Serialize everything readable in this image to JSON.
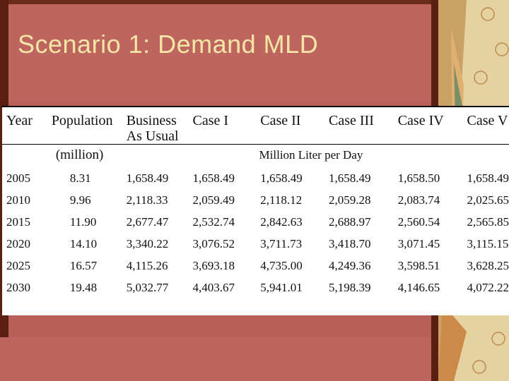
{
  "title": "Scenario 1: Demand MLD",
  "table": {
    "headers": [
      "Year",
      "Population",
      "Business As Usual",
      "Case I",
      "Case II",
      "Case III",
      "Case IV",
      "Case V"
    ],
    "subheader_population": "(million)",
    "subheader_cases": "Million Liter per Day",
    "rows": [
      [
        "2005",
        "8.31",
        "1,658.49",
        "1,658.49",
        "1,658.49",
        "1,658.49",
        "1,658.50",
        "1,658.49"
      ],
      [
        "2010",
        "9.96",
        "2,118.33",
        "2,059.49",
        "2,118.12",
        "2,059.28",
        "2,083.74",
        "2,025.65"
      ],
      [
        "2015",
        "11.90",
        "2,677.47",
        "2,532.74",
        "2,842.63",
        "2,688.97",
        "2,560.54",
        "2,565.85"
      ],
      [
        "2020",
        "14.10",
        "3,340.22",
        "3,076.52",
        "3,711.73",
        "3,418.70",
        "3,071.45",
        "3,115.15"
      ],
      [
        "2025",
        "16.57",
        "4,115.26",
        "3,693.18",
        "4,735.00",
        "4,249.36",
        "3,598.51",
        "3,628.25"
      ],
      [
        "2030",
        "19.48",
        "5,032.77",
        "4,403.67",
        "5,941.01",
        "5,198.39",
        "4,146.65",
        "4,072.22"
      ]
    ]
  }
}
